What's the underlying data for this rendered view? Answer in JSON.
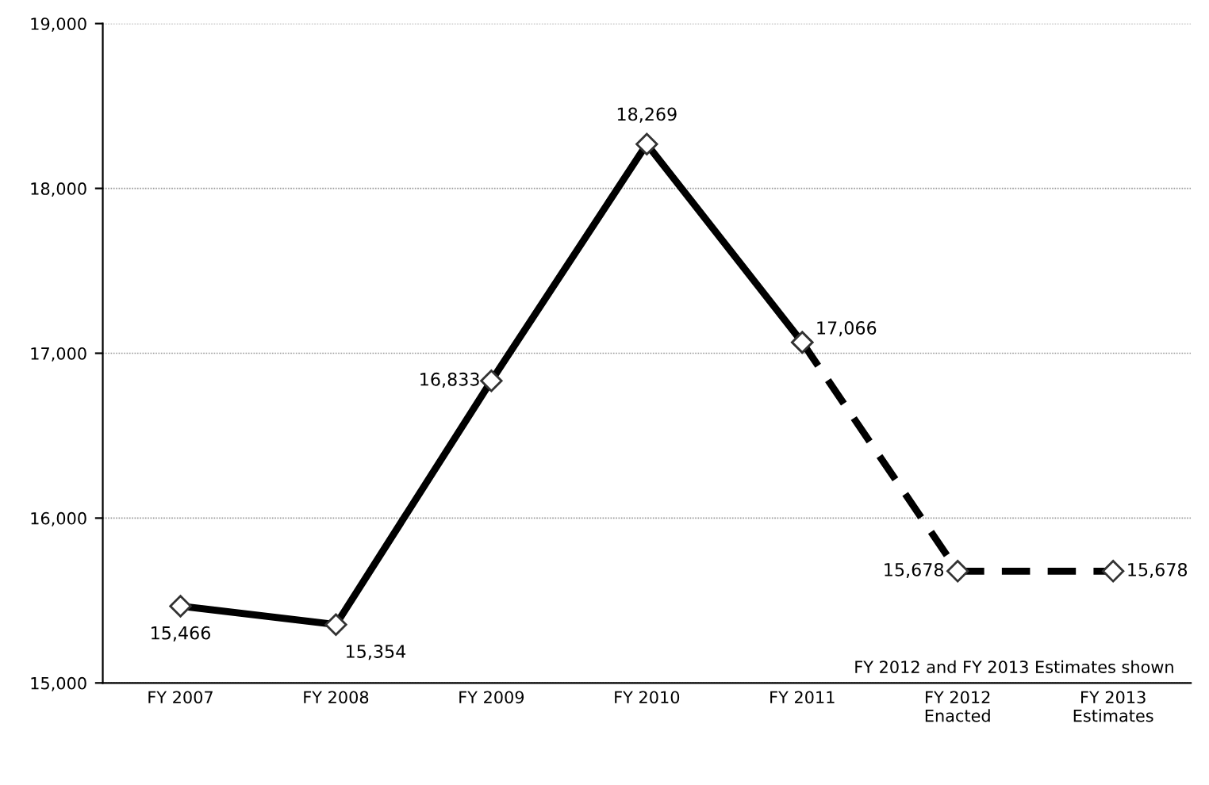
{
  "chart_data": {
    "type": "line",
    "categories": [
      "FY 2007",
      "FY 2008",
      "FY 2009",
      "FY 2010",
      "FY 2011",
      "FY 2012\nEnacted",
      "FY 2013\nEstimates"
    ],
    "series": [
      {
        "color": "#000000",
        "line_style": "solid",
        "values": [
          15466,
          15354,
          16833,
          18269,
          17066,
          null,
          null
        ],
        "value_labels": [
          "15,466",
          "15,354",
          "16,833",
          "18,269",
          "17,066",
          null,
          null
        ]
      },
      {
        "color": "#000000",
        "line_style": "dashed",
        "values": [
          null,
          null,
          null,
          null,
          17066,
          15678,
          15678
        ],
        "value_labels": [
          null,
          null,
          null,
          null,
          null,
          "15,678",
          "15,678"
        ]
      }
    ],
    "ylim": [
      15000,
      19000
    ],
    "yticks": [
      {
        "value": 15000,
        "label": "15,000"
      },
      {
        "value": 16000,
        "label": "16,000"
      },
      {
        "value": 17000,
        "label": "17,000"
      },
      {
        "value": 18000,
        "label": "18,000"
      },
      {
        "value": 19000,
        "label": "19,000"
      }
    ],
    "grid": "y",
    "marker": "diamond",
    "annotations": [
      "FY 2012 and FY 2013 Estimates shown"
    ]
  }
}
